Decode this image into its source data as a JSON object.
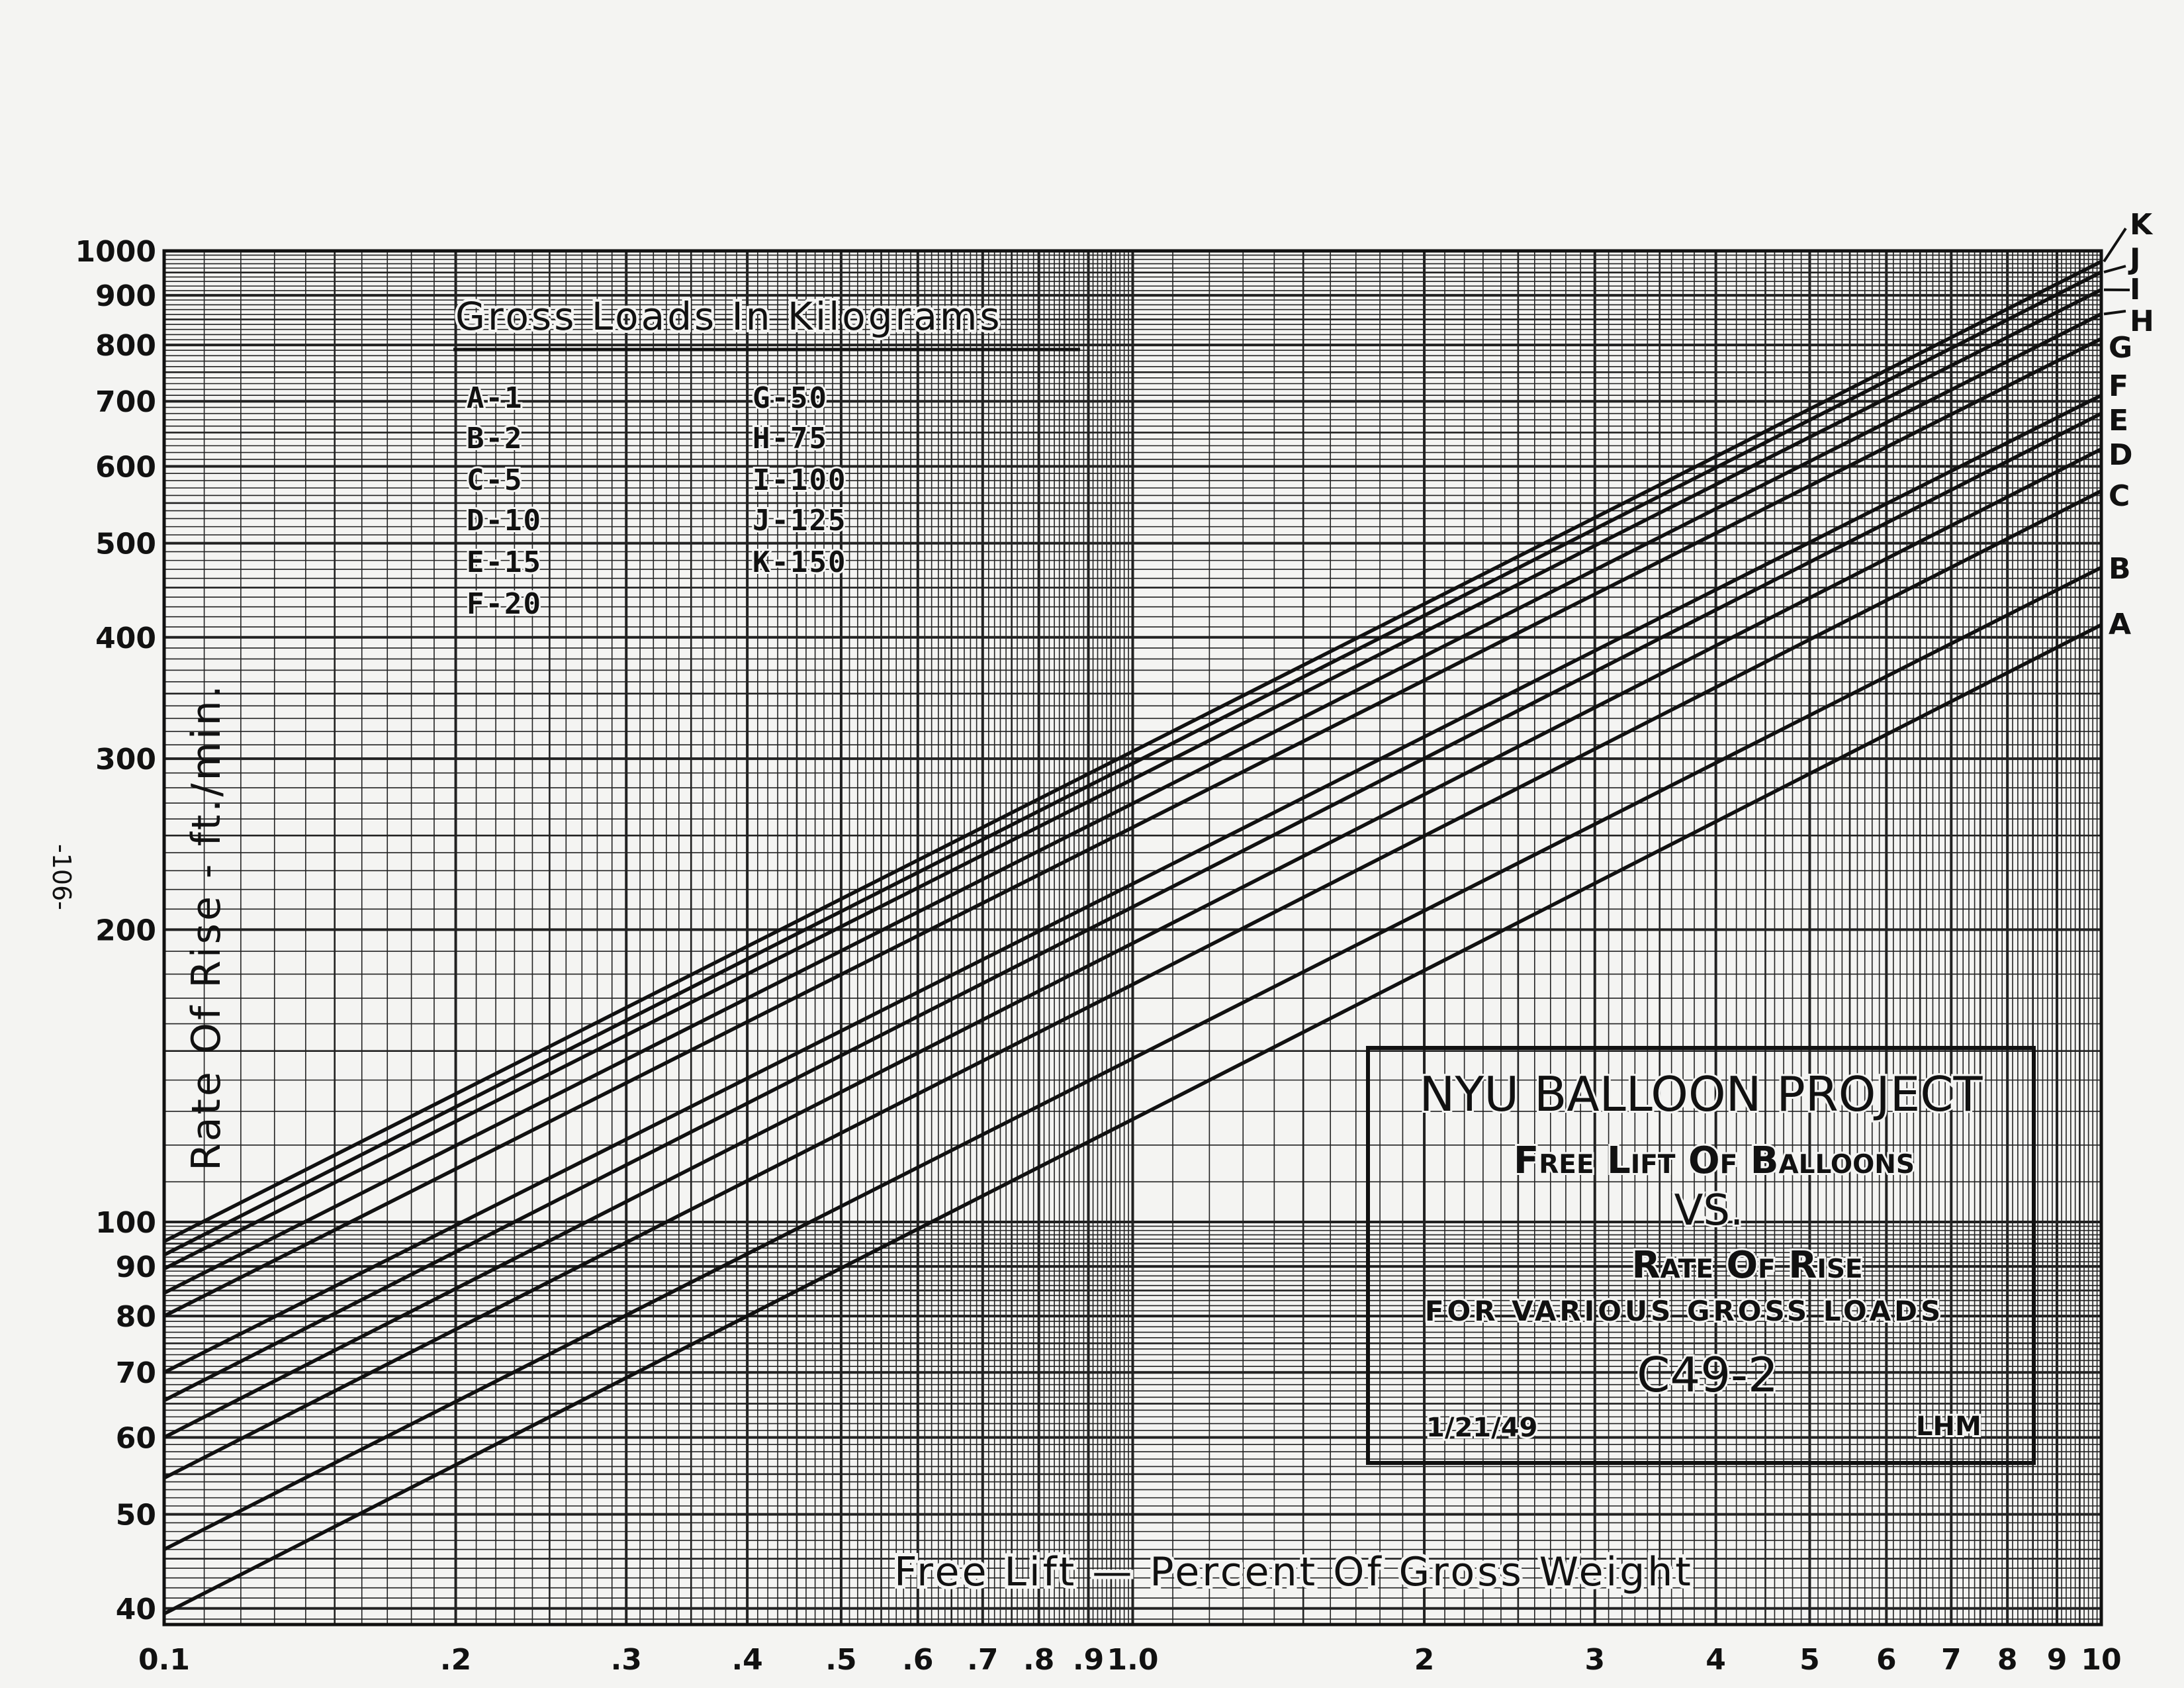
{
  "page_number": "-106-",
  "chart_data": {
    "type": "line",
    "x_scale": "log",
    "y_scale": "log",
    "xlim": [
      0.1,
      10
    ],
    "ylim": [
      38.5,
      1000
    ],
    "grid": true,
    "xlabel": "Free Lift — Percent Of Gross Weight",
    "ylabel": "Rate Of Rise - ft./min.",
    "x_ticks": [
      {
        "value": 0.1,
        "label": "0.1"
      },
      {
        "value": 0.2,
        "label": ".2"
      },
      {
        "value": 0.3,
        "label": ".3"
      },
      {
        "value": 0.4,
        "label": ".4"
      },
      {
        "value": 0.5,
        "label": ".5"
      },
      {
        "value": 0.6,
        "label": ".6"
      },
      {
        "value": 0.7,
        "label": ".7"
      },
      {
        "value": 0.8,
        "label": ".8"
      },
      {
        "value": 0.9,
        "label": ".9"
      },
      {
        "value": 1.0,
        "label": "1.0"
      },
      {
        "value": 2,
        "label": "2"
      },
      {
        "value": 3,
        "label": "3"
      },
      {
        "value": 4,
        "label": "4"
      },
      {
        "value": 5,
        "label": "5"
      },
      {
        "value": 6,
        "label": "6"
      },
      {
        "value": 7,
        "label": "7"
      },
      {
        "value": 8,
        "label": "8"
      },
      {
        "value": 9,
        "label": "9"
      },
      {
        "value": 10,
        "label": "10"
      }
    ],
    "y_ticks": [
      {
        "value": 1000,
        "label": "1000"
      },
      {
        "value": 900,
        "label": "900"
      },
      {
        "value": 800,
        "label": "800"
      },
      {
        "value": 700,
        "label": "700"
      },
      {
        "value": 600,
        "label": "600"
      },
      {
        "value": 500,
        "label": "500"
      },
      {
        "value": 400,
        "label": "400"
      },
      {
        "value": 300,
        "label": "300"
      },
      {
        "value": 200,
        "label": "200"
      },
      {
        "value": 100,
        "label": "100"
      },
      {
        "value": 90,
        "label": "90"
      },
      {
        "value": 80,
        "label": "80"
      },
      {
        "value": 70,
        "label": "70"
      },
      {
        "value": 60,
        "label": "60"
      },
      {
        "value": 50,
        "label": "50"
      },
      {
        "value": 40,
        "label": "40"
      }
    ],
    "series": [
      {
        "name": "A",
        "x": [
          0.1,
          10
        ],
        "y": [
          39.5,
          412
        ]
      },
      {
        "name": "B",
        "x": [
          0.1,
          10
        ],
        "y": [
          46,
          472
        ]
      },
      {
        "name": "C",
        "x": [
          0.1,
          10
        ],
        "y": [
          54.5,
          566
        ]
      },
      {
        "name": "D",
        "x": [
          0.1,
          10
        ],
        "y": [
          60,
          625
        ]
      },
      {
        "name": "E",
        "x": [
          0.1,
          10
        ],
        "y": [
          65.5,
          680
        ]
      },
      {
        "name": "F",
        "x": [
          0.1,
          10
        ],
        "y": [
          70,
          710
        ]
      },
      {
        "name": "G",
        "x": [
          0.1,
          10
        ],
        "y": [
          80,
          812
        ]
      },
      {
        "name": "H",
        "x": [
          0.1,
          10
        ],
        "y": [
          84.5,
          861
        ]
      },
      {
        "name": "I",
        "x": [
          0.1,
          10
        ],
        "y": [
          89.5,
          912
        ]
      },
      {
        "name": "J",
        "x": [
          0.1,
          10
        ],
        "y": [
          92.5,
          951
        ]
      },
      {
        "name": "K",
        "x": [
          0.1,
          10
        ],
        "y": [
          95.5,
          975
        ]
      }
    ],
    "legend": {
      "title": "Gross Loads In Kilograms",
      "placement": "top-left",
      "entries": [
        "A-1",
        "B-2",
        "C-5",
        "D-10",
        "E-15",
        "F-20",
        "G-50",
        "H-75",
        "I-100",
        "J-125",
        "K-150"
      ]
    }
  },
  "title_block": {
    "line1": "NYU BALLOON PROJECT",
    "line2": "Free Lift Of Balloons",
    "line3": "VS.",
    "line4": "Rate Of Rise",
    "line5": "FOR VARIOUS GROSS LOADS",
    "code": "C49-2",
    "date": "1/21/49",
    "initials": "LHM"
  }
}
